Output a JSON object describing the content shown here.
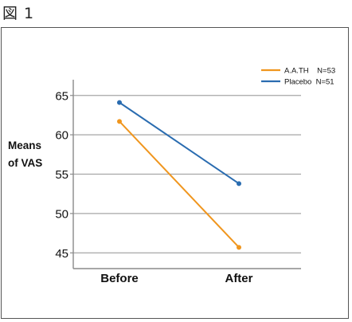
{
  "figure_label": "図 1",
  "chart_data": {
    "type": "line",
    "title": "",
    "xlabel": "",
    "ylabel_lines": [
      "Means",
      "of VAS"
    ],
    "categories": [
      "Before",
      "After"
    ],
    "ylim": [
      43,
      67
    ],
    "yticks": [
      45,
      50,
      55,
      60,
      65
    ],
    "grid": true,
    "legend_position": "top-right",
    "series": [
      {
        "name": "A.A.TH",
        "legend_label": "A.A.TH    N=53",
        "color": "#f0961e",
        "values": [
          61.7,
          45.7
        ]
      },
      {
        "name": "Placebo",
        "legend_label": "Placebo  N=51",
        "color": "#2a6cb0",
        "values": [
          64.1,
          53.8
        ]
      }
    ]
  }
}
